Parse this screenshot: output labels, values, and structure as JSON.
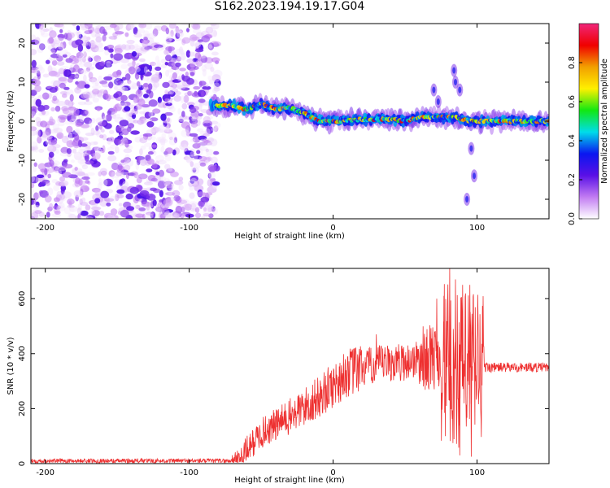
{
  "title": "S162.2023.194.19.17.G04",
  "colors": {
    "line": "#ee3030",
    "colormap": [
      "#ffffff",
      "#c27cf2",
      "#5a10e6",
      "#0a16f0",
      "#00ddea",
      "#12e812",
      "#fff000",
      "#f2a000",
      "#f00000",
      "#f0267a"
    ]
  },
  "chart_data": [
    {
      "type": "heatmap",
      "xlabel": "Height of straight line (km)",
      "ylabel": "Frequency (Hz)",
      "xlim": [
        -210,
        150
      ],
      "ylim": [
        -25,
        25
      ],
      "x_ticks": [
        -200,
        -100,
        0,
        100
      ],
      "y_ticks": [
        -20,
        -10,
        0,
        10,
        20
      ],
      "grid": false,
      "colorbar": {
        "label": "Normalized spectral amplitude",
        "range": [
          0,
          1
        ],
        "ticks": [
          0.0,
          0.2,
          0.4,
          0.6,
          0.8
        ],
        "tick_labels": [
          "0.0",
          "0.2",
          "0.4",
          "0.6",
          "0.8"
        ]
      },
      "regions": [
        {
          "name": "noise",
          "x": [
            -210,
            -80
          ],
          "y": [
            -25,
            25
          ],
          "amplitude": [
            0.02,
            0.25
          ]
        },
        {
          "name": "signal",
          "x": [
            -85,
            150
          ],
          "frequency_center_hz": [
            [
              -85,
              4
            ],
            [
              -70,
              4
            ],
            [
              -60,
              3
            ],
            [
              -50,
              4.5
            ],
            [
              -40,
              3
            ],
            [
              -30,
              3.5
            ],
            [
              -20,
              2
            ],
            [
              -10,
              0
            ],
            [
              0,
              0
            ],
            [
              20,
              0.5
            ],
            [
              40,
              0.5
            ],
            [
              50,
              0
            ],
            [
              60,
              1
            ],
            [
              75,
              1
            ],
            [
              85,
              1
            ],
            [
              95,
              0
            ],
            [
              110,
              0
            ],
            [
              150,
              0
            ]
          ],
          "amplitude": [
            0.3,
            0.9
          ]
        }
      ]
    },
    {
      "type": "line",
      "xlabel": "Height of straight line (km)",
      "ylabel": "SNR (10 * v/v)",
      "xlim": [
        -210,
        150
      ],
      "ylim": [
        0,
        710
      ],
      "x_ticks": [
        -200,
        -100,
        0,
        100
      ],
      "y_ticks": [
        0,
        200,
        400,
        600
      ],
      "grid": false,
      "trend": {
        "x": [
          -210,
          -70,
          -65,
          -50,
          -30,
          -10,
          10,
          30,
          50,
          60,
          70,
          80,
          90,
          95,
          100,
          105,
          110,
          150
        ],
        "y": [
          10,
          10,
          20,
          110,
          170,
          240,
          330,
          360,
          370,
          380,
          390,
          360,
          330,
          350,
          370,
          350,
          350,
          350
        ]
      },
      "spikes": [
        {
          "x": 81,
          "y": 715
        },
        {
          "x": 85,
          "y": 670
        },
        {
          "x": 90,
          "y": 650
        },
        {
          "x": 95,
          "y": 650
        },
        {
          "x": 72,
          "y": 600
        },
        {
          "x": 77,
          "y": 610
        },
        {
          "x": 30,
          "y": 470
        },
        {
          "x": 88,
          "y": 30
        },
        {
          "x": 96,
          "y": 25
        }
      ]
    }
  ]
}
